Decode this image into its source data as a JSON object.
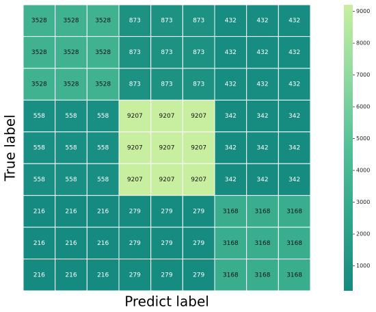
{
  "chart_data": {
    "type": "heatmap",
    "xlabel": "Predict label",
    "ylabel": "True label",
    "values": [
      [
        3528,
        3528,
        3528,
        873,
        873,
        873,
        432,
        432,
        432
      ],
      [
        3528,
        3528,
        3528,
        873,
        873,
        873,
        432,
        432,
        432
      ],
      [
        3528,
        3528,
        3528,
        873,
        873,
        873,
        432,
        432,
        432
      ],
      [
        558,
        558,
        558,
        9207,
        9207,
        9207,
        342,
        342,
        342
      ],
      [
        558,
        558,
        558,
        9207,
        9207,
        9207,
        342,
        342,
        342
      ],
      [
        558,
        558,
        558,
        9207,
        9207,
        9207,
        342,
        342,
        342
      ],
      [
        216,
        216,
        216,
        279,
        279,
        279,
        3168,
        3168,
        3168
      ],
      [
        216,
        216,
        216,
        279,
        279,
        279,
        3168,
        3168,
        3168
      ],
      [
        216,
        216,
        216,
        279,
        279,
        279,
        3168,
        3168,
        3168
      ]
    ],
    "zlim": [
      216,
      9207
    ],
    "zticks": [
      1000,
      2000,
      3000,
      4000,
      5000,
      6000,
      7000,
      8000,
      9000
    ],
    "colors": [
      "#158a80",
      "#2fa58a",
      "#52c097",
      "#8fd9a0",
      "#c8efa0"
    ]
  }
}
